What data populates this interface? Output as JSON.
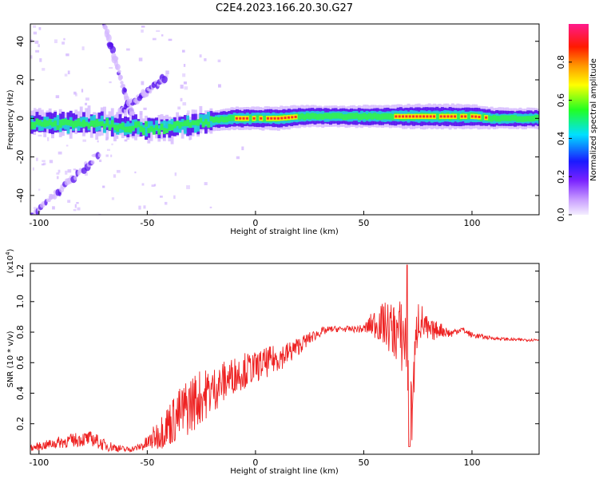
{
  "title": "C2E4.2023.166.20.30.G27",
  "colors": {
    "snr_line": "#ee2222",
    "track_core": "#ff2a2a",
    "track_mid": "#33ee55",
    "track_outer": "#22ccdd",
    "track_halo": "#5511ee",
    "track_faint": "#d4b8ff",
    "axes": "#000000"
  },
  "chart_data": [
    {
      "type": "heatmap",
      "xlabel": "Height of straight line (km)",
      "ylabel": "Frequency (Hz)",
      "xlim": [
        -104,
        131
      ],
      "ylim": [
        -50,
        49
      ],
      "xticks": [
        -100,
        -50,
        0,
        50,
        100
      ],
      "yticks": [
        -40,
        -20,
        0,
        20,
        40
      ],
      "colorbar": {
        "label": "Normalized spectral amplitude",
        "range": [
          0,
          1
        ],
        "ticks": [
          0.0,
          0.2,
          0.4,
          0.6,
          0.8
        ],
        "colormap": "rainbow: lavender-purple-blue-cyan-green-yellow-orange-red-magenta"
      },
      "track": {
        "center_frequency_hz": 0,
        "description": "dominant signal near 0 Hz across all heights",
        "x": [
          -104,
          -90,
          -75,
          -60,
          -50,
          -40,
          -30,
          -20,
          -10,
          0,
          10,
          20,
          30,
          40,
          50,
          60,
          70,
          80,
          90,
          100,
          110,
          120,
          131
        ],
        "center_hz": [
          -2,
          -3,
          -2,
          -4,
          -5,
          -5,
          -3,
          -1,
          0,
          0,
          0,
          1,
          1,
          1,
          1,
          1,
          1,
          1,
          1,
          1,
          0,
          0,
          0
        ],
        "amplitude": [
          0.55,
          0.6,
          0.5,
          0.55,
          0.5,
          0.45,
          0.45,
          0.5,
          0.75,
          0.75,
          0.85,
          0.7,
          0.6,
          0.6,
          0.7,
          0.7,
          0.9,
          0.95,
          0.95,
          0.9,
          0.6,
          0.55,
          0.55
        ]
      },
      "diagonal_features": [
        {
          "x": [
            -104,
            -72
          ],
          "y": [
            -52,
            -18
          ]
        },
        {
          "x": [
            -70,
            -55
          ],
          "y": [
            49,
            -5
          ]
        },
        {
          "x": [
            -64,
            -42
          ],
          "y": [
            2,
            21
          ]
        }
      ]
    },
    {
      "type": "line",
      "xlabel": "Height of straight line (km)",
      "ylabel": "SNR (10 * v/v)",
      "y_multiplier": "(x10^4)",
      "xlim": [
        -104,
        131
      ],
      "ylim": [
        0,
        1.25
      ],
      "xticks": [
        -100,
        -50,
        0,
        50,
        100
      ],
      "yticks": [
        0.2,
        0.4,
        0.6,
        0.8,
        1.0,
        1.2
      ],
      "series": [
        {
          "envelope_x": [
            -104,
            -90,
            -80,
            -75,
            -70,
            -60,
            -55,
            -50,
            -45,
            -40,
            -35,
            -30,
            -25,
            -20,
            -15,
            -10,
            -5,
            0,
            5,
            10,
            15,
            20,
            25,
            30,
            35,
            40,
            45,
            50,
            55,
            60,
            65,
            70,
            71,
            75,
            80,
            85,
            90,
            95,
            100,
            110,
            120,
            131
          ],
          "envelope_y": [
            0.04,
            0.08,
            0.1,
            0.1,
            0.06,
            0.03,
            0.04,
            0.07,
            0.13,
            0.2,
            0.26,
            0.33,
            0.38,
            0.42,
            0.47,
            0.52,
            0.55,
            0.57,
            0.6,
            0.63,
            0.66,
            0.71,
            0.76,
            0.8,
            0.82,
            0.82,
            0.82,
            0.82,
            0.86,
            0.85,
            0.8,
            0.75,
            0.05,
            0.9,
            0.8,
            0.82,
            0.79,
            0.82,
            0.78,
            0.76,
            0.75,
            0.75
          ],
          "noise_amplitude": [
            0.02,
            0.04,
            0.05,
            0.05,
            0.04,
            0.02,
            0.02,
            0.05,
            0.1,
            0.15,
            0.18,
            0.2,
            0.18,
            0.15,
            0.14,
            0.12,
            0.12,
            0.1,
            0.1,
            0.09,
            0.08,
            0.06,
            0.04,
            0.03,
            0.02,
            0.02,
            0.02,
            0.03,
            0.1,
            0.15,
            0.2,
            0.3,
            0.3,
            0.15,
            0.08,
            0.05,
            0.03,
            0.02,
            0.02,
            0.01,
            0.01,
            0.01
          ]
        }
      ]
    }
  ]
}
